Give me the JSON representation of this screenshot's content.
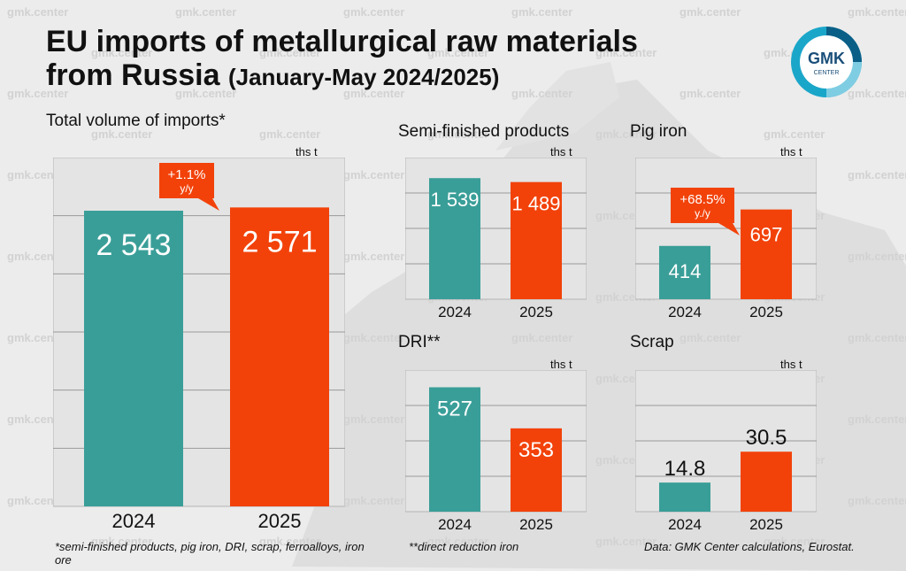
{
  "title": "EU imports of metallurgical raw materials",
  "title_line2": "from Russia",
  "subtitle": "(January-May 2024/2025)",
  "logo": {
    "text_main": "GMK",
    "text_sub": "CENTER"
  },
  "watermark": "gmk.center",
  "colors": {
    "teal": "#3a9e98",
    "orange": "#f2420a",
    "panel": "#e4e4e4",
    "grid": "#9a9a9a"
  },
  "footnotes": {
    "total": "*semi-finished products, pig iron, DRI, scrap, ferroalloys, iron ore",
    "dri": "**direct reduction iron",
    "source": "Data: GMK Center calculations, Eurostat."
  },
  "chart_data": [
    {
      "id": "total",
      "type": "bar",
      "title": "Total volume of imports*",
      "unit": "ths t",
      "categories": [
        "2024",
        "2025"
      ],
      "values": [
        2543,
        2571
      ],
      "labels": [
        "2 543",
        "2 571"
      ],
      "ylim": [
        0,
        3000
      ],
      "annotation": {
        "pct": "+1.1%",
        "period": "y/y"
      }
    },
    {
      "id": "semi",
      "type": "bar",
      "title": "Semi-finished products",
      "unit": "ths t",
      "categories": [
        "2024",
        "2025"
      ],
      "values": [
        1539,
        1489
      ],
      "labels": [
        "1 539",
        "1 489"
      ],
      "ylim": [
        0,
        1800
      ]
    },
    {
      "id": "pig",
      "type": "bar",
      "title": "Pig iron",
      "unit": "ths t",
      "categories": [
        "2024",
        "2025"
      ],
      "values": [
        414,
        697
      ],
      "labels": [
        "414",
        "697"
      ],
      "ylim": [
        0,
        1100
      ],
      "annotation": {
        "pct": "+68.5%",
        "period": "y./y"
      }
    },
    {
      "id": "dri",
      "type": "bar",
      "title": "DRI**",
      "unit": "ths t",
      "categories": [
        "2024",
        "2025"
      ],
      "values": [
        527,
        353
      ],
      "labels": [
        "527",
        "353"
      ],
      "ylim": [
        0,
        600
      ]
    },
    {
      "id": "scrap",
      "type": "bar",
      "title": "Scrap",
      "unit": "ths t",
      "categories": [
        "2024",
        "2025"
      ],
      "values": [
        14.8,
        30.5
      ],
      "labels": [
        "14.8",
        "30.5"
      ],
      "ylim": [
        0,
        72
      ]
    }
  ]
}
